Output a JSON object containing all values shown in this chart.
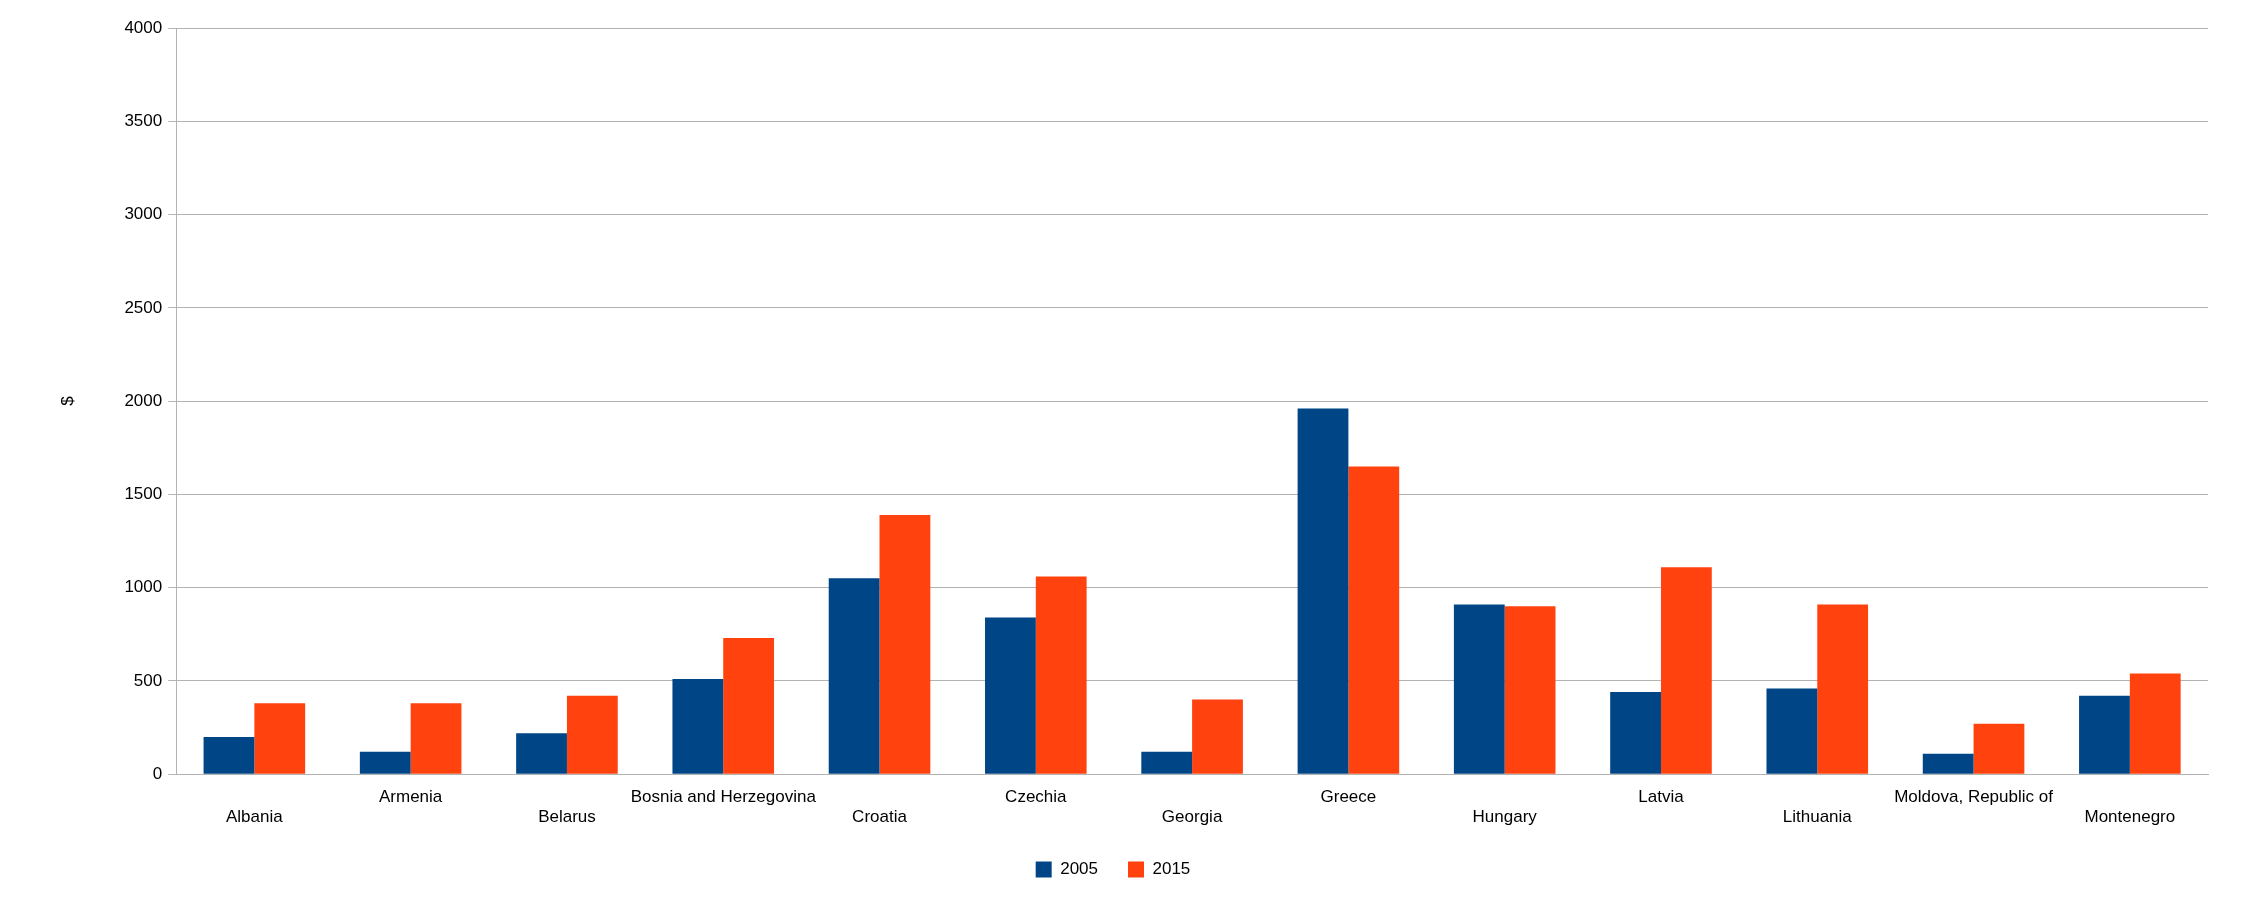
{
  "chart_data": {
    "type": "bar",
    "ylabel": "$",
    "categories": [
      "Albania",
      "Armenia",
      "Belarus",
      "Bosnia and Herzegovina",
      "Croatia",
      "Czechia",
      "Georgia",
      "Greece",
      "Hungary",
      "Latvia",
      "Lithuania",
      "Moldova, Republic of",
      "Montenegro"
    ],
    "series": [
      {
        "name": "2005",
        "color": "#004586",
        "values": [
          200,
          120,
          220,
          510,
          1050,
          840,
          120,
          1960,
          910,
          440,
          460,
          110,
          420
        ]
      },
      {
        "name": "2015",
        "color": "#ff420e",
        "values": [
          380,
          380,
          420,
          730,
          1390,
          1060,
          400,
          1650,
          900,
          1110,
          910,
          270,
          540
        ]
      }
    ],
    "ylim": [
      0,
      4000
    ],
    "yticks": [
      0,
      500,
      1000,
      1500,
      2000,
      2500,
      3000,
      3500,
      4000
    ],
    "grid": "y",
    "legend": "bottom"
  }
}
